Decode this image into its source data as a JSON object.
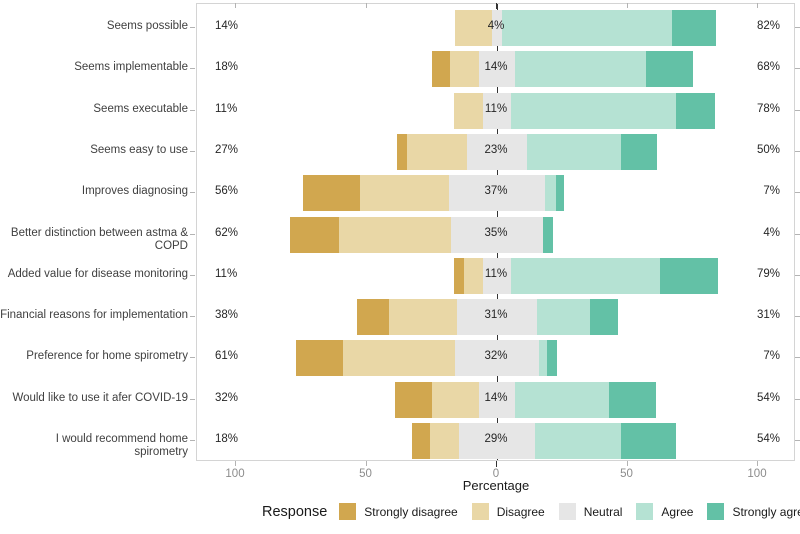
{
  "chart_data": {
    "type": "bar",
    "variant": "diverging-stacked-likert-horizontal",
    "title": "",
    "xlabel": "Percentage",
    "x_tick_labels": [
      "100",
      "50",
      "0",
      "50",
      "100"
    ],
    "x_tick_values": [
      -100,
      -50,
      0,
      50,
      100
    ],
    "xlim": [
      -115,
      115
    ],
    "grid": "off",
    "legend_position": "bottom",
    "legend_title": "Response",
    "series_names": [
      "Strongly disagree",
      "Disagree",
      "Neutral",
      "Agree",
      "Strongly agree"
    ],
    "colors": {
      "strongly_disagree": "#d1a74f",
      "disagree": "#e9d7a6",
      "neutral": "#e6e6e6",
      "agree": "#b5e2d3",
      "strongly_agree": "#63c1a6",
      "zero_line": "#333333",
      "panel_border": "#d4d4d4"
    },
    "categories": [
      "Seems possible",
      "Seems implementable",
      "Seems executable",
      "Seems easy to use",
      "Improves diagnosing",
      "Better distinction between astma & COPD",
      "Added value for disease monitoring",
      "Financial reasons for implementation",
      "Preference for home spirometry",
      "Would like to use it afer COVID-19",
      "I would recommend home spirometry"
    ],
    "rows": [
      {
        "category": "Seems possible",
        "left_label": "14%",
        "neutral_label": "4%",
        "right_label": "82%",
        "values": {
          "strongly_disagree": 0,
          "disagree": 14,
          "neutral": 4,
          "agree": 65,
          "strongly_agree": 17
        }
      },
      {
        "category": "Seems implementable",
        "left_label": "18%",
        "neutral_label": "14%",
        "right_label": "68%",
        "values": {
          "strongly_disagree": 7,
          "disagree": 11,
          "neutral": 14,
          "agree": 50,
          "strongly_agree": 18
        }
      },
      {
        "category": "Seems executable",
        "left_label": "11%",
        "neutral_label": "11%",
        "right_label": "78%",
        "values": {
          "strongly_disagree": 0,
          "disagree": 11,
          "neutral": 11,
          "agree": 63,
          "strongly_agree": 15
        }
      },
      {
        "category": "Seems easy to use",
        "left_label": "27%",
        "neutral_label": "23%",
        "right_label": "50%",
        "values": {
          "strongly_disagree": 4,
          "disagree": 23,
          "neutral": 23,
          "agree": 36,
          "strongly_agree": 14
        }
      },
      {
        "category": "Improves diagnosing",
        "left_label": "56%",
        "neutral_label": "37%",
        "right_label": "7%",
        "values": {
          "strongly_disagree": 22,
          "disagree": 34,
          "neutral": 37,
          "agree": 4,
          "strongly_agree": 3
        }
      },
      {
        "category": "Better distinction between astma & COPD",
        "left_label": "62%",
        "neutral_label": "35%",
        "right_label": "4%",
        "values": {
          "strongly_disagree": 19,
          "disagree": 43,
          "neutral": 35,
          "agree": 0,
          "strongly_agree": 4
        }
      },
      {
        "category": "Added value for disease monitoring",
        "left_label": "11%",
        "neutral_label": "11%",
        "right_label": "79%",
        "values": {
          "strongly_disagree": 4,
          "disagree": 7,
          "neutral": 11,
          "agree": 57,
          "strongly_agree": 22
        }
      },
      {
        "category": "Financial reasons for implementation",
        "left_label": "38%",
        "neutral_label": "31%",
        "right_label": "31%",
        "values": {
          "strongly_disagree": 12,
          "disagree": 26,
          "neutral": 31,
          "agree": 20,
          "strongly_agree": 11
        }
      },
      {
        "category": "Preference for home spirometry",
        "left_label": "61%",
        "neutral_label": "32%",
        "right_label": "7%",
        "values": {
          "strongly_disagree": 18,
          "disagree": 43,
          "neutral": 32,
          "agree": 3,
          "strongly_agree": 4
        }
      },
      {
        "category": "Would like to use it afer COVID-19",
        "left_label": "32%",
        "neutral_label": "14%",
        "right_label": "54%",
        "values": {
          "strongly_disagree": 14,
          "disagree": 18,
          "neutral": 14,
          "agree": 36,
          "strongly_agree": 18
        }
      },
      {
        "category": "I would recommend home spirometry",
        "left_label": "18%",
        "neutral_label": "29%",
        "right_label": "54%",
        "values": {
          "strongly_disagree": 7,
          "disagree": 11,
          "neutral": 29,
          "agree": 33,
          "strongly_agree": 21
        }
      }
    ]
  }
}
